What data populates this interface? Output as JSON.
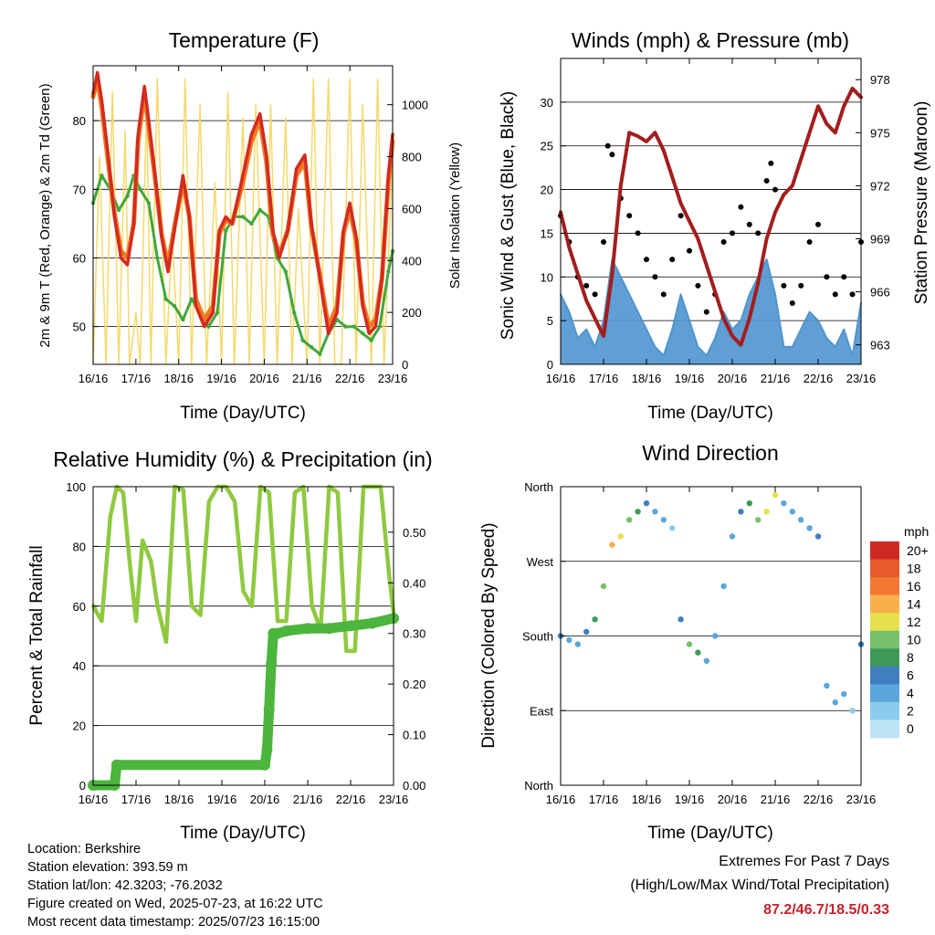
{
  "colors": {
    "temp_red": "#d42a20",
    "temp_orange": "#f07a20",
    "dewpoint_green": "#3fa83a",
    "solar_yellow": "#f5d96b",
    "gust_black": "#000000",
    "wind_blue": "#4f95cf",
    "pressure_maroon": "#a31d1d",
    "rh_green": "#8fc93f",
    "precip_green": "#4bb53c",
    "extremes_red": "#c8202a",
    "speed_scale": [
      "#bde4f5",
      "#8ccbeb",
      "#5aa7db",
      "#3f7fc0",
      "#3f9a5a",
      "#78c06a",
      "#e6e04f",
      "#f8b04a",
      "#f27833",
      "#e65a2c",
      "#cf2a22",
      "#a8181c",
      "#7a0f14"
    ]
  },
  "chart_data": [
    {
      "id": "temperature",
      "type": "line",
      "title": "Temperature (F)",
      "xlabel": "Time (Day/UTC)",
      "ylabel": "2m & 9m T (Red, Orange) & 2m Td (Green)",
      "y2label": "Solar Insolation (Yellow)",
      "x_ticks": [
        "16/16",
        "17/16",
        "18/16",
        "19/16",
        "20/16",
        "21/16",
        "22/16",
        "23/16"
      ],
      "xlim": [
        0,
        7
      ],
      "ylim": [
        44.5,
        88
      ],
      "y_ticks": [
        50,
        60,
        70,
        80
      ],
      "y2lim": [
        0,
        1150
      ],
      "y2_ticks": [
        0,
        200,
        400,
        600,
        800,
        1000
      ],
      "grid": true,
      "series": [
        {
          "name": "2m T",
          "axis": "left",
          "x": [
            0,
            0.1,
            0.2,
            0.35,
            0.5,
            0.65,
            0.8,
            0.95,
            1.05,
            1.2,
            1.3,
            1.45,
            1.6,
            1.75,
            1.9,
            2.1,
            2.25,
            2.4,
            2.6,
            2.8,
            2.95,
            3.1,
            3.25,
            3.5,
            3.7,
            3.9,
            4.05,
            4.2,
            4.35,
            4.55,
            4.75,
            4.95,
            5.1,
            5.3,
            5.5,
            5.7,
            5.85,
            6.0,
            6.15,
            6.3,
            6.45,
            6.6,
            6.75,
            6.9,
            7.0
          ],
          "values": [
            84,
            87,
            83,
            75,
            66,
            60,
            59,
            65,
            78,
            85,
            80,
            72,
            63,
            58,
            64,
            72,
            66,
            53,
            50,
            52,
            64,
            66,
            65,
            72,
            78,
            81,
            75,
            64,
            60,
            64,
            73,
            75,
            65,
            57,
            49,
            52,
            64,
            68,
            63,
            53,
            49,
            50,
            57,
            72,
            78
          ]
        },
        {
          "name": "9m T",
          "axis": "left",
          "x": [
            0,
            0.1,
            0.2,
            0.35,
            0.5,
            0.65,
            0.8,
            0.95,
            1.05,
            1.2,
            1.3,
            1.45,
            1.6,
            1.75,
            1.9,
            2.1,
            2.25,
            2.4,
            2.6,
            2.8,
            2.95,
            3.1,
            3.25,
            3.5,
            3.7,
            3.9,
            4.05,
            4.2,
            4.35,
            4.55,
            4.75,
            4.95,
            5.1,
            5.3,
            5.5,
            5.7,
            5.85,
            6.0,
            6.15,
            6.3,
            6.45,
            6.6,
            6.75,
            6.9,
            7.0
          ],
          "values": [
            83.5,
            86,
            82,
            74,
            66.5,
            61,
            60,
            65,
            77,
            84,
            79,
            71.5,
            63.5,
            59,
            64.5,
            71,
            66,
            54,
            51,
            53,
            63.5,
            65.5,
            65,
            71,
            77,
            80,
            74,
            63.5,
            60.5,
            64,
            72,
            74,
            64.5,
            57.5,
            50,
            53,
            63.5,
            67,
            62.5,
            53.5,
            50,
            51,
            57,
            71,
            77
          ]
        },
        {
          "name": "2m Td",
          "axis": "left",
          "x": [
            0,
            0.2,
            0.4,
            0.6,
            0.8,
            0.95,
            1.1,
            1.3,
            1.5,
            1.7,
            1.9,
            2.1,
            2.3,
            2.5,
            2.7,
            2.9,
            3.1,
            3.3,
            3.5,
            3.7,
            3.9,
            4.1,
            4.3,
            4.5,
            4.7,
            4.9,
            5.1,
            5.3,
            5.5,
            5.7,
            5.9,
            6.1,
            6.3,
            6.5,
            6.7,
            6.9,
            7.0
          ],
          "values": [
            68,
            72,
            70,
            67,
            69,
            72,
            70,
            68,
            60,
            54,
            53,
            51,
            54,
            52,
            50,
            52,
            64,
            66,
            66,
            65,
            67,
            66,
            60,
            58,
            52,
            48,
            47,
            46,
            49,
            51,
            50,
            50,
            49,
            48,
            50,
            58,
            61
          ]
        },
        {
          "name": "Solar Insolation",
          "axis": "right",
          "x": [
            0,
            0.15,
            0.3,
            0.45,
            0.6,
            0.75,
            0.85,
            1.0,
            1.1,
            1.25,
            1.35,
            1.5,
            1.7,
            1.85,
            2.0,
            2.15,
            2.3,
            2.5,
            2.65,
            2.85,
            3.0,
            3.15,
            3.3,
            3.5,
            3.65,
            3.8,
            4.0,
            4.15,
            4.3,
            4.5,
            4.65,
            4.8,
            5.0,
            5.15,
            5.3,
            5.5,
            5.65,
            5.8,
            6.0,
            6.15,
            6.3,
            6.5,
            6.65,
            6.8,
            7.0
          ],
          "values": [
            0,
            800,
            0,
            1050,
            0,
            900,
            0,
            200,
            0,
            1000,
            0,
            1100,
            0,
            500,
            0,
            1100,
            0,
            1000,
            0,
            700,
            0,
            1050,
            0,
            950,
            0,
            1000,
            0,
            1000,
            0,
            950,
            0,
            600,
            0,
            1100,
            0,
            1100,
            0,
            0,
            1100,
            0,
            1000,
            0,
            1100,
            0,
            800
          ]
        }
      ]
    },
    {
      "id": "winds",
      "type": "line",
      "title": "Winds (mph) & Pressure (mb)",
      "xlabel": "Time (Day/UTC)",
      "ylabel": "Sonic Wind & Gust (Blue, Black)",
      "y2label": "Station Pressure (Maroon)",
      "x_ticks": [
        "16/16",
        "17/16",
        "18/16",
        "19/16",
        "20/16",
        "21/16",
        "22/16",
        "23/16"
      ],
      "xlim": [
        0,
        7
      ],
      "ylim": [
        0,
        35
      ],
      "y_ticks": [
        0,
        5,
        10,
        15,
        20,
        25,
        30
      ],
      "y2lim": [
        961.9,
        979.2
      ],
      "y2_ticks": [
        963,
        966,
        969,
        972,
        975,
        978
      ],
      "grid": true,
      "series": [
        {
          "name": "Sonic Wind",
          "axis": "left",
          "x": [
            0,
            0.2,
            0.4,
            0.6,
            0.8,
            1.0,
            1.2,
            1.4,
            1.6,
            1.8,
            2.0,
            2.2,
            2.4,
            2.6,
            2.8,
            3.0,
            3.2,
            3.4,
            3.6,
            3.8,
            4.0,
            4.2,
            4.4,
            4.6,
            4.8,
            5.0,
            5.2,
            5.4,
            5.6,
            5.8,
            6.0,
            6.2,
            6.4,
            6.6,
            6.8,
            7.0
          ],
          "values": [
            8,
            6,
            3,
            4,
            2,
            5,
            12,
            10,
            8,
            6,
            4,
            2,
            1,
            4,
            8,
            5,
            2,
            1,
            3,
            6,
            4,
            5,
            8,
            10,
            12,
            8,
            2,
            2,
            4,
            6,
            5,
            3,
            2,
            4,
            1,
            7
          ]
        },
        {
          "name": "Gust",
          "axis": "left",
          "x": [
            0,
            0.2,
            0.4,
            0.6,
            0.8,
            1.0,
            1.1,
            1.2,
            1.4,
            1.6,
            1.8,
            2.0,
            2.2,
            2.4,
            2.6,
            2.8,
            3.0,
            3.2,
            3.4,
            3.6,
            3.8,
            4.0,
            4.2,
            4.4,
            4.6,
            4.8,
            4.9,
            5.0,
            5.2,
            5.4,
            5.6,
            5.8,
            6.0,
            6.2,
            6.4,
            6.6,
            6.8,
            7.0
          ],
          "values": [
            17,
            14,
            10,
            9,
            8,
            14,
            25,
            24,
            19,
            17,
            15,
            12,
            10,
            8,
            12,
            17,
            13,
            9,
            6,
            8,
            14,
            15,
            18,
            16,
            15,
            21,
            23,
            20,
            9,
            7,
            9,
            14,
            16,
            10,
            8,
            10,
            8,
            14
          ]
        },
        {
          "name": "Station Pressure",
          "axis": "right",
          "x": [
            0,
            0.2,
            0.4,
            0.6,
            0.8,
            1.0,
            1.2,
            1.4,
            1.6,
            1.8,
            2.0,
            2.2,
            2.4,
            2.6,
            2.8,
            3.0,
            3.2,
            3.4,
            3.6,
            3.8,
            4.0,
            4.2,
            4.4,
            4.6,
            4.8,
            5.0,
            5.2,
            5.4,
            5.6,
            5.8,
            6.0,
            6.2,
            6.4,
            6.6,
            6.8,
            7.0
          ],
          "values": [
            970.5,
            968.5,
            967,
            965.5,
            964.5,
            963.5,
            967,
            972,
            975,
            974.8,
            974.5,
            975,
            974,
            972.5,
            971,
            970,
            969,
            967.5,
            966,
            964.5,
            963.5,
            963,
            964.5,
            966.5,
            969,
            970.5,
            971.5,
            972,
            973.5,
            975,
            976.5,
            975.5,
            975,
            976.5,
            977.5,
            977
          ]
        }
      ]
    },
    {
      "id": "humidity",
      "type": "line",
      "title": "Relative Humidity (%) & Precipitation (in)",
      "xlabel": "Time (Day/UTC)",
      "ylabel": "Percent & Total Rainfall",
      "x_ticks": [
        "16/16",
        "17/16",
        "18/16",
        "19/16",
        "20/16",
        "21/16",
        "22/16",
        "23/16"
      ],
      "xlim": [
        0,
        7
      ],
      "ylim": [
        0,
        100
      ],
      "y_ticks": [
        0,
        20,
        40,
        60,
        80,
        100
      ],
      "y2lim": [
        0,
        0.59
      ],
      "y2_ticks": [
        "0.00",
        "0.10",
        "0.20",
        "0.30",
        "0.40",
        "0.50"
      ],
      "grid": true,
      "series": [
        {
          "name": "Relative Humidity",
          "axis": "left",
          "x": [
            0,
            0.2,
            0.4,
            0.55,
            0.7,
            0.85,
            1.0,
            1.15,
            1.35,
            1.5,
            1.7,
            1.9,
            2.1,
            2.3,
            2.5,
            2.7,
            2.9,
            3.1,
            3.3,
            3.5,
            3.7,
            3.9,
            4.1,
            4.3,
            4.5,
            4.7,
            4.9,
            5.1,
            5.3,
            5.5,
            5.7,
            5.9,
            6.1,
            6.3,
            6.5,
            6.7,
            6.9,
            7.0
          ],
          "values": [
            60,
            55,
            90,
            100,
            98,
            75,
            55,
            82,
            75,
            60,
            48,
            100,
            99,
            60,
            57,
            95,
            100,
            100,
            95,
            65,
            60,
            100,
            98,
            55,
            55,
            98,
            100,
            60,
            52,
            100,
            98,
            45,
            45,
            100,
            100,
            100,
            70,
            58
          ]
        },
        {
          "name": "Total Precipitation",
          "axis": "right",
          "x": [
            0,
            0.5,
            0.55,
            4.0,
            4.05,
            4.1,
            4.15,
            4.2,
            4.3,
            4.5,
            5.0,
            5.5,
            6.0,
            6.5,
            7.0
          ],
          "values": [
            0,
            0,
            0.04,
            0.04,
            0.07,
            0.15,
            0.24,
            0.3,
            0.3,
            0.305,
            0.31,
            0.31,
            0.315,
            0.32,
            0.33
          ]
        }
      ]
    },
    {
      "id": "direction",
      "type": "scatter",
      "title": "Wind Direction",
      "xlabel": "Time (Day/UTC)",
      "ylabel": "Direction (Colored By Speed)",
      "x_ticks": [
        "16/16",
        "17/16",
        "18/16",
        "19/16",
        "20/16",
        "21/16",
        "22/16",
        "23/16"
      ],
      "xlim": [
        0,
        7
      ],
      "ylim": [
        0,
        360
      ],
      "y_ticks": [
        "North",
        "East",
        "South",
        "West",
        "North"
      ],
      "legend_title": "mph",
      "legend_labels": [
        "20+",
        "18",
        "16",
        "14",
        "12",
        "10",
        "8",
        "6",
        "4",
        "2",
        "0"
      ],
      "legend_position": "right",
      "series": [
        {
          "name": "Direction",
          "x": [
            0,
            0.2,
            0.4,
            0.6,
            0.8,
            1.0,
            1.2,
            1.4,
            1.6,
            1.8,
            2.0,
            2.2,
            2.4,
            2.6,
            2.8,
            3.0,
            3.2,
            3.4,
            3.6,
            3.8,
            4.0,
            4.2,
            4.4,
            4.6,
            4.8,
            5.0,
            5.2,
            5.4,
            5.6,
            5.8,
            6.0,
            6.2,
            6.4,
            6.6,
            6.8,
            7.0
          ],
          "values": [
            180,
            175,
            170,
            185,
            200,
            240,
            290,
            300,
            320,
            330,
            340,
            330,
            320,
            310,
            200,
            170,
            160,
            150,
            180,
            240,
            300,
            330,
            340,
            320,
            330,
            350,
            340,
            330,
            320,
            310,
            300,
            120,
            100,
            110,
            90,
            170
          ],
          "speeds": [
            6,
            4,
            3,
            5,
            7,
            10,
            14,
            12,
            10,
            8,
            6,
            4,
            3,
            2,
            6,
            9,
            8,
            4,
            3,
            4,
            4,
            6,
            8,
            10,
            12,
            12,
            4,
            3,
            3,
            4,
            5,
            4,
            3,
            3,
            2,
            6
          ]
        }
      ]
    }
  ],
  "footer": {
    "location": "Location: Berkshire",
    "elevation": "Station elevation: 393.59 m",
    "latlon": "Station lat/lon: 42.3203; -76.2032",
    "created": "Figure created on Wed, 2025-07-23, at 16:22 UTC",
    "timestamp": "Most recent data timestamp: 2025/07/23 16:15:00"
  },
  "extremes": {
    "title": "Extremes For Past 7 Days",
    "subtitle": "(High/Low/Max Wind/Total Precipitation)",
    "values": "87.2/46.7/18.5/0.33"
  }
}
